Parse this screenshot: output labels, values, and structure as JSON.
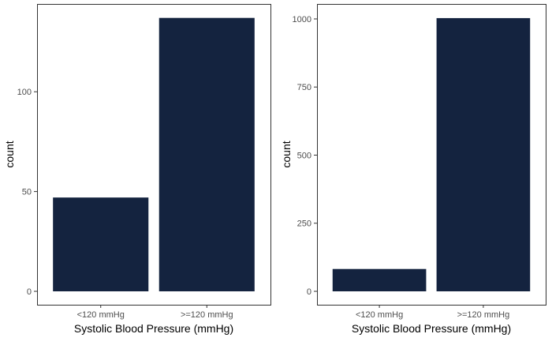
{
  "chart_data": [
    {
      "type": "bar",
      "categories": [
        "<120 mmHg",
        ">=120 mmHg"
      ],
      "values": [
        47,
        137
      ],
      "xlabel": "Systolic Blood Pressure (mmHg)",
      "ylabel": "count",
      "ylim": [
        0,
        144
      ],
      "yticks": [
        0,
        50,
        100
      ],
      "grid": false,
      "bar_color": "#14233f"
    },
    {
      "type": "bar",
      "categories": [
        "<120 mmHg",
        ">=120 mmHg"
      ],
      "values": [
        82,
        1003
      ],
      "xlabel": "Systolic Blood Pressure (mmHg)",
      "ylabel": "count",
      "ylim": [
        0,
        1055
      ],
      "yticks": [
        0,
        250,
        500,
        750,
        1000
      ],
      "grid": false,
      "bar_color": "#14233f"
    }
  ]
}
